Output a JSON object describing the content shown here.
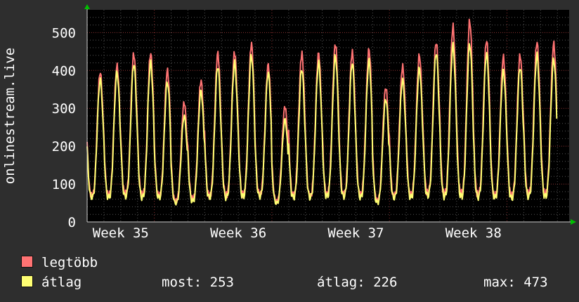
{
  "chart_data": {
    "type": "line",
    "ylabel": "onlinestream.live",
    "ylim": [
      0,
      560
    ],
    "yticks": [
      0,
      100,
      200,
      300,
      400,
      500
    ],
    "xlim_days": [
      0,
      28.7
    ],
    "xticks": [
      {
        "label": "Week 35",
        "day": 2
      },
      {
        "label": "Week 36",
        "day": 9
      },
      {
        "label": "Week 37",
        "day": 16
      },
      {
        "label": "Week 38",
        "day": 23
      }
    ],
    "grid": true,
    "colors": {
      "background": "#2e2e2e",
      "plot": "#000000",
      "grid": "#555555",
      "axis": "#cccccc",
      "arrow": "#00c000",
      "text": "#ffffff"
    },
    "series": [
      {
        "name": "legtöbb",
        "color": "#ff7373",
        "daily_peaks": [
          395,
          412,
          443,
          445,
          400,
          315,
          373,
          445,
          448,
          470,
          415,
          305,
          445,
          445,
          470,
          448,
          455,
          355,
          410,
          440,
          475,
          515,
          530,
          480,
          435,
          440,
          475,
          470
        ],
        "daily_lows": [
          70,
          72,
          75,
          72,
          70,
          55,
          62,
          70,
          72,
          73,
          75,
          55,
          72,
          70,
          75,
          75,
          73,
          58,
          70,
          72,
          78,
          75,
          75,
          73,
          70,
          70,
          75,
          75
        ]
      },
      {
        "name": "átlag",
        "color": "#ffff73",
        "daily_peaks": [
          375,
          395,
          418,
          420,
          370,
          280,
          345,
          412,
          420,
          440,
          395,
          270,
          405,
          420,
          438,
          420,
          425,
          325,
          375,
          405,
          448,
          465,
          470,
          445,
          400,
          410,
          440,
          430
        ],
        "daily_lows": [
          65,
          65,
          68,
          65,
          65,
          50,
          55,
          65,
          65,
          68,
          68,
          50,
          65,
          65,
          68,
          68,
          66,
          52,
          64,
          65,
          70,
          68,
          68,
          66,
          65,
          63,
          68,
          68
        ]
      }
    ]
  },
  "legend": {
    "max_label": "legtöbb",
    "avg_label": "átlag",
    "stats": [
      {
        "label": "most:",
        "value": "253"
      },
      {
        "label": "átlag:",
        "value": "226"
      },
      {
        "label": "max:",
        "value": "473"
      }
    ]
  }
}
